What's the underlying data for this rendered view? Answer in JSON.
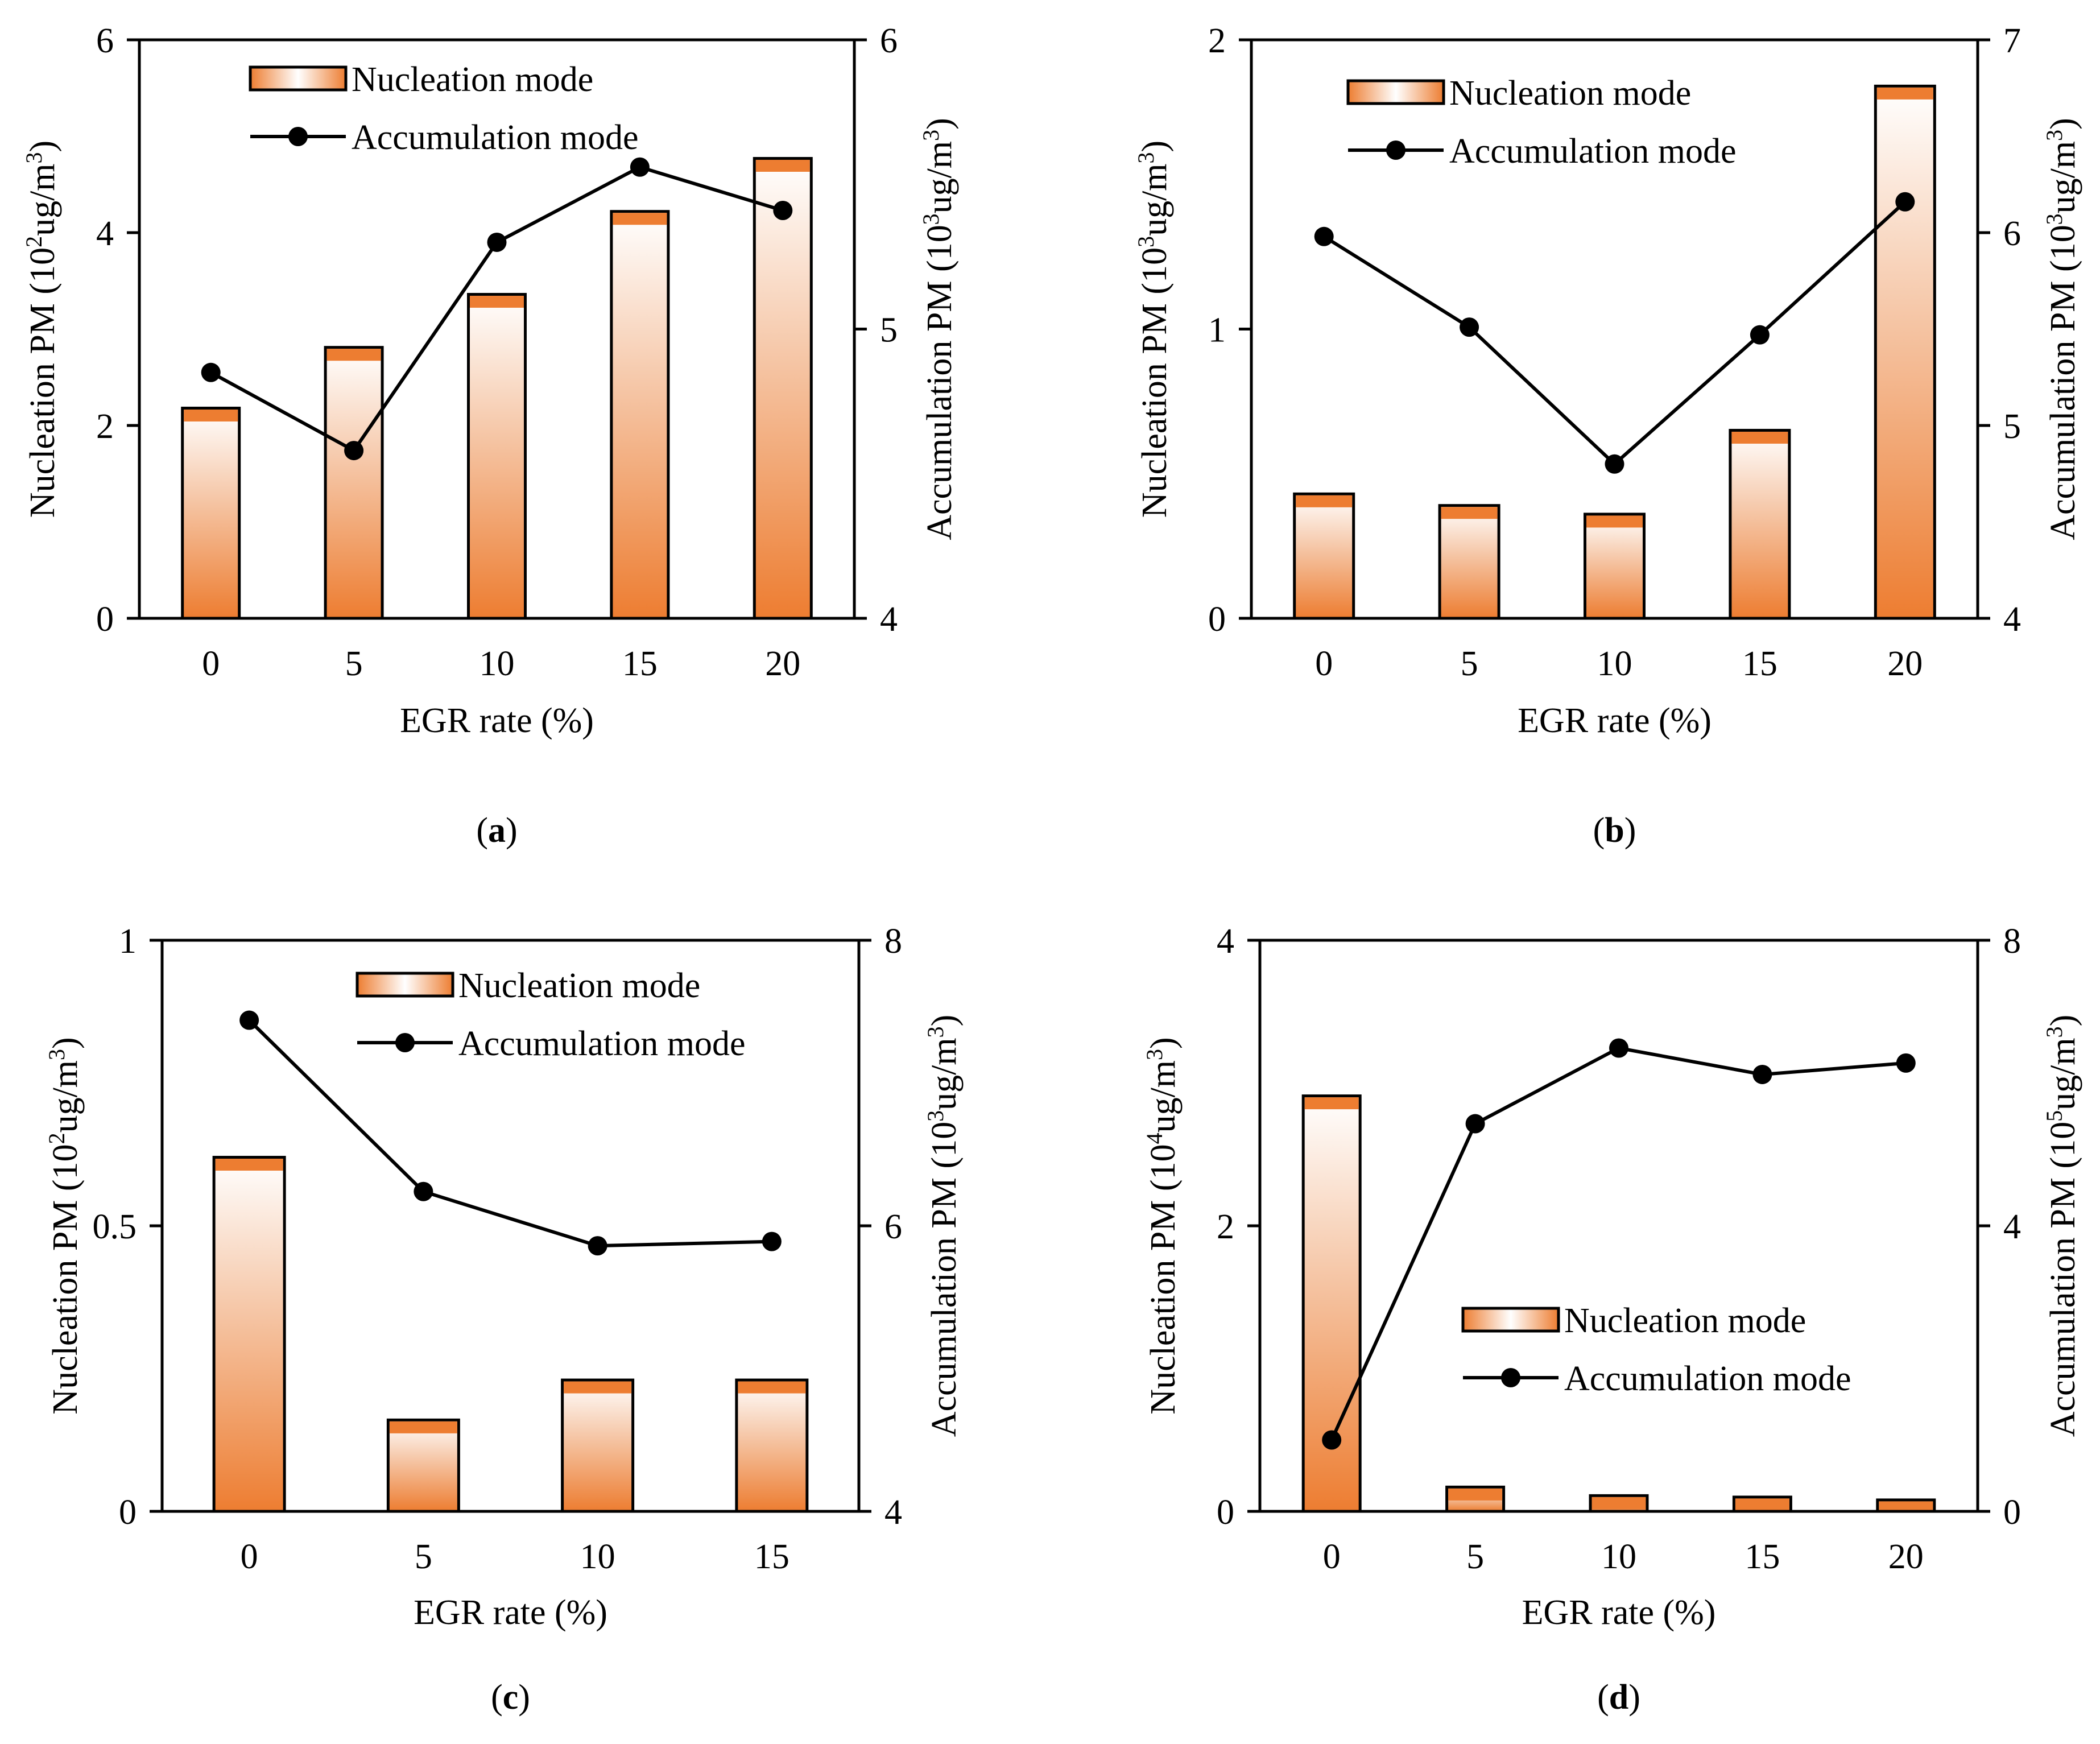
{
  "colors": {
    "bar_top": "#ffffff",
    "bar_mid": "#f5c4a3",
    "bar_bottom": "#ed7d31",
    "bar_cap": "#ed7d31",
    "bar_stroke": "#000000",
    "line": "#000000",
    "axis": "#000000"
  },
  "chart_data": [
    {
      "id": "a",
      "panel_label": "a",
      "type": "bar+line",
      "xlabel": "EGR rate (%)",
      "ylabel_left": {
        "text": "Nucleation PM (10",
        "sup": "2",
        "unit": "ug/m",
        "sup2": "3",
        "close": ")"
      },
      "ylabel_right": {
        "text": "Accumulation PM (10",
        "sup": "3",
        "unit": "ug/m",
        "sup2": "3",
        "close": ")"
      },
      "categories": [
        "0",
        "5",
        "10",
        "15",
        "20"
      ],
      "ylim_left": [
        0,
        6
      ],
      "yticks_left": [
        "0",
        "2",
        "4",
        "6"
      ],
      "ylim_right": [
        4,
        6
      ],
      "yticks_right": [
        "4",
        "5",
        "6"
      ],
      "legend_position": "top-center",
      "series": [
        {
          "name": "Nucleation mode",
          "kind": "bar",
          "axis": "left",
          "values": [
            2.18,
            2.81,
            3.36,
            4.22,
            4.77
          ]
        },
        {
          "name": "Accumulation mode",
          "kind": "line",
          "axis": "right",
          "values": [
            4.85,
            4.58,
            5.3,
            5.56,
            5.41
          ]
        }
      ]
    },
    {
      "id": "b",
      "panel_label": "b",
      "type": "bar+line",
      "xlabel": "EGR rate (%)",
      "ylabel_left": {
        "text": "Nucleation PM (10",
        "sup": "3",
        "unit": "ug/m",
        "sup2": "3",
        "close": ")"
      },
      "ylabel_right": {
        "text": "Accumulation PM (10",
        "sup": "3",
        "unit": "ug/m",
        "sup2": "3",
        "close": ")"
      },
      "categories": [
        "0",
        "5",
        "10",
        "15",
        "20"
      ],
      "ylim_left": [
        0,
        2
      ],
      "yticks_left": [
        "0",
        "1",
        "2"
      ],
      "ylim_right": [
        4,
        7
      ],
      "yticks_right": [
        "4",
        "5",
        "6",
        "7"
      ],
      "legend_position": "top-center",
      "series": [
        {
          "name": "Nucleation mode",
          "kind": "bar",
          "axis": "left",
          "values": [
            0.43,
            0.39,
            0.36,
            0.65,
            1.84
          ]
        },
        {
          "name": "Accumulation mode",
          "kind": "line",
          "axis": "right",
          "values": [
            5.98,
            5.51,
            4.8,
            5.47,
            6.16
          ]
        }
      ]
    },
    {
      "id": "c",
      "panel_label": "c",
      "type": "bar+line",
      "xlabel": "EGR rate (%)",
      "ylabel_left": {
        "text": "Nucleation PM (10",
        "sup": "2",
        "unit": "ug/m",
        "sup2": "3",
        "close": ")"
      },
      "ylabel_right": {
        "text": "Accumulation PM (10",
        "sup": "3",
        "unit": "ug/m",
        "sup2": "3",
        "close": ")"
      },
      "categories": [
        "0",
        "5",
        "10",
        "15"
      ],
      "ylim_left": [
        0,
        1
      ],
      "yticks_left": [
        "0",
        "0.5",
        "1"
      ],
      "ylim_right": [
        4,
        8
      ],
      "yticks_right": [
        "4",
        "6",
        "8"
      ],
      "legend_position": "top-right",
      "series": [
        {
          "name": "Nucleation mode",
          "kind": "bar",
          "axis": "left",
          "values": [
            0.62,
            0.16,
            0.23,
            0.23
          ]
        },
        {
          "name": "Accumulation mode",
          "kind": "line",
          "axis": "right",
          "values": [
            7.44,
            6.24,
            5.86,
            5.89
          ]
        }
      ]
    },
    {
      "id": "d",
      "panel_label": "d",
      "type": "bar+line",
      "xlabel": "EGR rate (%)",
      "ylabel_left": {
        "text": "Nucleation PM (10",
        "sup": "4",
        "unit": "ug/m",
        "sup2": "3",
        "close": ")"
      },
      "ylabel_right": {
        "text": "Accumulation PM (10",
        "sup": "5",
        "unit": "ug/m",
        "sup2": "3",
        "close": ")"
      },
      "categories": [
        "0",
        "5",
        "10",
        "15",
        "20"
      ],
      "ylim_left": [
        0,
        4
      ],
      "yticks_left": [
        "0",
        "2",
        "4"
      ],
      "ylim_right": [
        0,
        8
      ],
      "yticks_right": [
        "0",
        "4",
        "8"
      ],
      "legend_position": "bottom-right",
      "series": [
        {
          "name": "Nucleation mode",
          "kind": "bar",
          "axis": "left",
          "values": [
            2.91,
            0.17,
            0.11,
            0.1,
            0.08
          ]
        },
        {
          "name": "Accumulation mode",
          "kind": "line",
          "axis": "right",
          "values": [
            1.0,
            5.43,
            6.49,
            6.12,
            6.28
          ]
        }
      ]
    }
  ]
}
